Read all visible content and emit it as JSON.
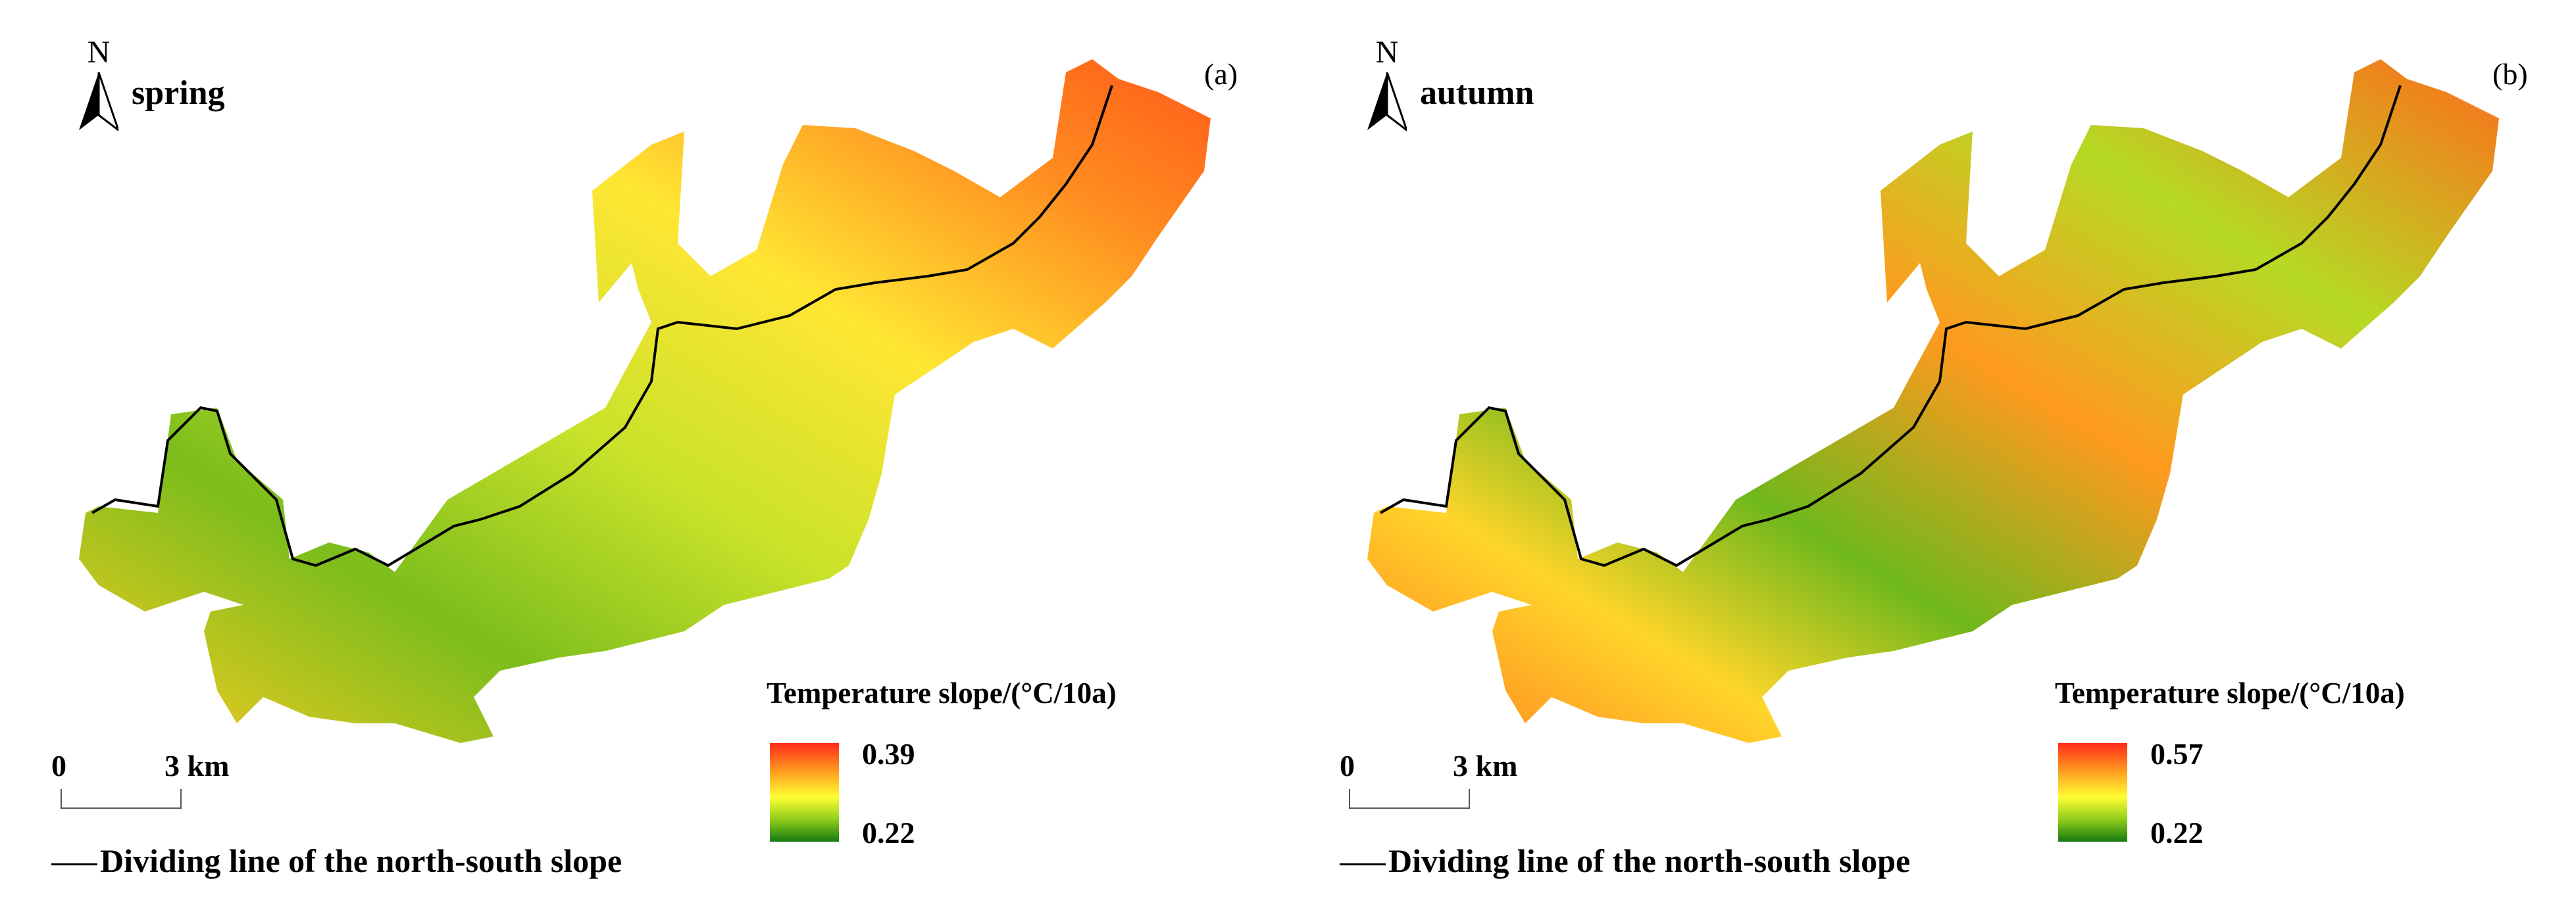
{
  "panels": [
    {
      "id": "spring",
      "season_label": "spring",
      "panel_tag": "(a)",
      "north_label": "N",
      "legend": {
        "title": "Temperature slope/(°C/10a)",
        "max": "0.39",
        "min": "0.22"
      },
      "scale": {
        "zero": "0",
        "end": "3 km"
      },
      "divider_label": "Dividing line of the north-south slope"
    },
    {
      "id": "autumn",
      "season_label": "autumn",
      "panel_tag": "(b)",
      "north_label": "N",
      "legend": {
        "title": "Temperature slope/(°C/10a)",
        "max": "0.57",
        "min": "0.22"
      },
      "scale": {
        "zero": "0",
        "end": "3 km"
      },
      "divider_label": "Dividing line of the north-south slope"
    }
  ],
  "colors": {
    "high": "#ff2a1a",
    "mid_high": "#ff9a1f",
    "mid": "#ffff33",
    "mid_low": "#8ecb1c",
    "low": "#157a12",
    "divider_line": "#000000"
  }
}
